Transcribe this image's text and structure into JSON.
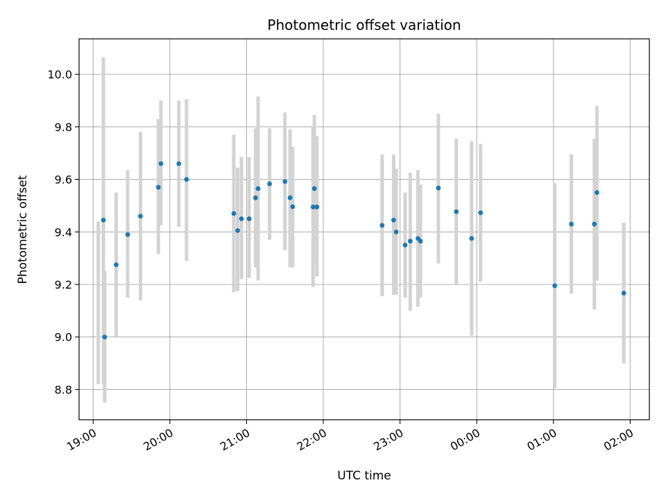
{
  "chart_data": {
    "type": "scatter",
    "title": "Photometric offset variation",
    "xlabel": "UTC time",
    "ylabel": "Photometric offset",
    "x_axis": {
      "kind": "time",
      "start_date": "2000-01-01",
      "range": [
        "18:49",
        "02:15"
      ],
      "ticks": [
        "19:00",
        "20:00",
        "21:00",
        "22:00",
        "23:00",
        "00:00",
        "01:00",
        "02:00"
      ]
    },
    "y_axis": {
      "range": [
        8.685,
        10.135
      ],
      "ticks": [
        "8.8",
        "9.0",
        "9.2",
        "9.4",
        "9.6",
        "9.8",
        "10.0"
      ]
    },
    "grid": true,
    "marker_color": "#1f77b4",
    "errorbar_color": "#d3d3d3",
    "points": [
      {
        "t": "19:04",
        "lo": 8.82,
        "hi": 9.44
      },
      {
        "t": "19:08",
        "y": 9.445,
        "lo": 8.82,
        "hi": 10.065
      },
      {
        "t": "19:09",
        "y": 9.0,
        "lo": 8.75,
        "hi": 9.25
      },
      {
        "t": "19:18",
        "y": 9.275,
        "lo": 9.0,
        "hi": 9.55
      },
      {
        "t": "19:27",
        "y": 9.39,
        "lo": 9.15,
        "hi": 9.635
      },
      {
        "t": "19:37",
        "y": 9.46,
        "lo": 9.14,
        "hi": 9.78
      },
      {
        "t": "19:51",
        "y": 9.57,
        "lo": 9.315,
        "hi": 9.83
      },
      {
        "t": "19:53",
        "y": 9.66,
        "lo": 9.425,
        "hi": 9.9
      },
      {
        "t": "20:07",
        "y": 9.66,
        "lo": 9.42,
        "hi": 9.9
      },
      {
        "t": "20:13",
        "y": 9.6,
        "lo": 9.29,
        "hi": 9.905
      },
      {
        "t": "20:50",
        "y": 9.47,
        "lo": 9.17,
        "hi": 9.77
      },
      {
        "t": "20:53",
        "y": 9.405,
        "lo": 9.175,
        "hi": 9.645
      },
      {
        "t": "20:56",
        "y": 9.45,
        "lo": 9.22,
        "hi": 9.685
      },
      {
        "t": "21:02",
        "y": 9.45,
        "lo": 9.225,
        "hi": 9.685
      },
      {
        "t": "21:07",
        "y": 9.53,
        "lo": 9.265,
        "hi": 9.795
      },
      {
        "t": "21:09",
        "y": 9.565,
        "lo": 9.215,
        "hi": 9.915
      },
      {
        "t": "21:18",
        "y": 9.583,
        "lo": 9.37,
        "hi": 9.795
      },
      {
        "t": "21:30",
        "y": 9.592,
        "lo": 9.33,
        "hi": 9.855
      },
      {
        "t": "21:34",
        "y": 9.53,
        "lo": 9.265,
        "hi": 9.79
      },
      {
        "t": "21:36",
        "y": 9.496,
        "lo": 9.265,
        "hi": 9.725
      },
      {
        "t": "21:52",
        "y": 9.495,
        "lo": 9.19,
        "hi": 9.8
      },
      {
        "t": "21:53",
        "y": 9.565,
        "lo": 9.28,
        "hi": 9.845
      },
      {
        "t": "21:55",
        "y": 9.495,
        "lo": 9.23,
        "hi": 9.765
      },
      {
        "t": "22:46",
        "y": 9.425,
        "lo": 9.155,
        "hi": 9.695
      },
      {
        "t": "22:55",
        "y": 9.445,
        "lo": 9.16,
        "hi": 9.695
      },
      {
        "t": "22:57",
        "y": 9.4,
        "lo": 9.16,
        "hi": 9.64
      },
      {
        "t": "23:04",
        "y": 9.35,
        "lo": 9.15,
        "hi": 9.55
      },
      {
        "t": "23:08",
        "y": 9.365,
        "lo": 9.1,
        "hi": 9.625
      },
      {
        "t": "23:14",
        "y": 9.375,
        "lo": 9.115,
        "hi": 9.635
      },
      {
        "t": "23:16",
        "y": 9.365,
        "lo": 9.15,
        "hi": 9.58
      },
      {
        "t": "23:30",
        "y": 9.567,
        "lo": 9.28,
        "hi": 9.85
      },
      {
        "t": "23:44",
        "y": 9.477,
        "lo": 9.2,
        "hi": 9.755
      },
      {
        "t": "23:56",
        "y": 9.375,
        "lo": 9.005,
        "hi": 9.745
      },
      {
        "t": "00:03",
        "y": 9.473,
        "lo": 9.21,
        "hi": 9.735
      },
      {
        "t": "01:01",
        "y": 9.195,
        "lo": 8.805,
        "hi": 9.585
      },
      {
        "t": "01:14",
        "y": 9.43,
        "lo": 9.165,
        "hi": 9.695
      },
      {
        "t": "01:32",
        "y": 9.43,
        "lo": 9.105,
        "hi": 9.755
      },
      {
        "t": "01:34",
        "y": 9.55,
        "lo": 9.215,
        "hi": 9.88
      },
      {
        "t": "01:55",
        "y": 9.167,
        "lo": 8.9,
        "hi": 9.435
      }
    ]
  }
}
